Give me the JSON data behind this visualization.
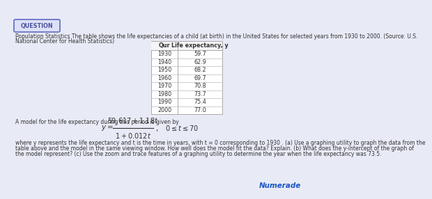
{
  "background_color": "#e8eaf6",
  "question_box_text": "QUESTION",
  "question_box_bg": "#dde0f7",
  "question_box_border": "#5c6bc0",
  "main_text_1": "Population Statistics The table shows the life expectancies of a child (at birth) in the United States for selected years from 1930 to 2000. (Source: U.S.",
  "main_text_2": "National Center for Health Statistics)",
  "table_header": [
    "Qur",
    "Life expectancy, y"
  ],
  "table_data": [
    [
      "1930",
      "59.7"
    ],
    [
      "1940",
      "62.9"
    ],
    [
      "1950",
      "68.2"
    ],
    [
      "1960",
      "69.7"
    ],
    [
      "1970",
      "70.8"
    ],
    [
      "1980",
      "73.7"
    ],
    [
      "1990",
      "75.4"
    ],
    [
      "2000",
      "77.0"
    ]
  ],
  "model_text": "A model for the life expectancy during this period is given by",
  "bottom_text_1": "where y represents the life expectancy and t is the time in years, with t = 0 corresponding to 1930 . (a) Use a graphing utility to graph the data from the",
  "bottom_text_2": "table above and the model in the same viewing window. How well does the model fit the data? Explain. (b) What does the y-intercept of the graph of",
  "bottom_text_3": "the model represent? (c) Use the zoom and trace features of a graphing utility to determine the year when the life expectancy was 73.5.",
  "numerade_color": "#1a56c4",
  "table_bg": "#ffffff",
  "table_border": "#aaaaaa",
  "text_color": "#333333",
  "font_size_small": 5.5,
  "font_size_table": 5.8,
  "font_size_formula": 7.5,
  "font_size_question": 5.8
}
